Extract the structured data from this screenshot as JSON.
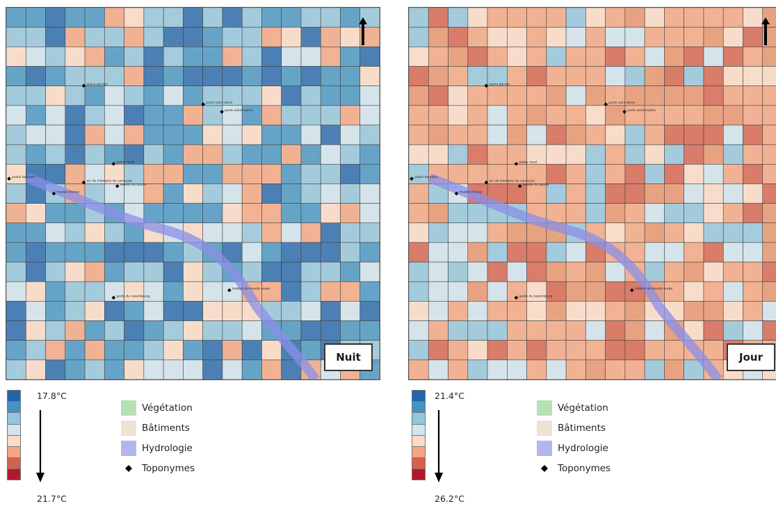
{
  "maps": [
    {
      "id": "nuit",
      "label": "Nuit",
      "scale_max": "17.8°C",
      "scale_min": "21.7°C",
      "scale_colors": [
        "#2166ac",
        "#4393c3",
        "#92c5de",
        "#d1e5f0",
        "#fddbc7",
        "#f4a582",
        "#d6604d",
        "#b2182b"
      ]
    },
    {
      "id": "jour",
      "label": "Jour",
      "scale_max": "21.4°C",
      "scale_min": "26.2°C",
      "scale_colors": [
        "#2166ac",
        "#4393c3",
        "#92c5de",
        "#d1e5f0",
        "#fddbc7",
        "#f4a582",
        "#d6604d",
        "#b2182b"
      ]
    }
  ],
  "landuse_legend": [
    {
      "label": "Végétation",
      "color": "#b7e0b2"
    },
    {
      "label": "Bâtiments",
      "color": "#ece3d2"
    },
    {
      "label": "Hydrologie",
      "color": "#b3b5ee"
    },
    {
      "label": "Toponymes",
      "color": "#000000"
    }
  ],
  "toponyms": [
    "opéra garnier",
    "porte saint-denis",
    "porte saint-martin",
    "palais royal",
    "arc de triomphe du carrousel",
    "musée du louvre",
    "palais bourbon",
    "musée d'orsay",
    "jardin du luxembourg",
    "institut du monde arabe"
  ],
  "icons": {
    "north_arrow": "arrow-up-icon",
    "scale_arrow": "arrow-down-icon",
    "toponym_marker": "diamond-icon"
  }
}
